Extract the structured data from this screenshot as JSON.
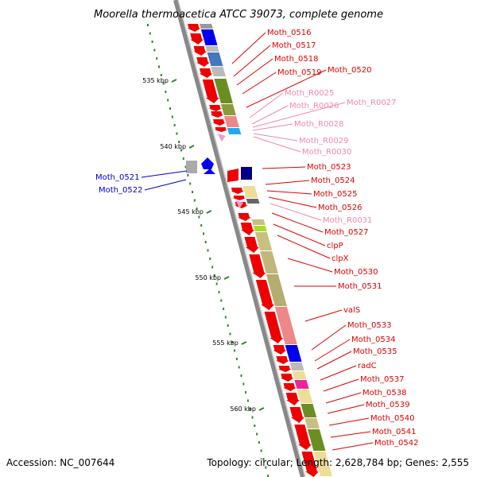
{
  "title": "Moorella thermoacetica ATCC 39073, complete genome",
  "footer": {
    "accession": "Accession: NC_007644",
    "topology": "Topology: circular; Length: 2,628,784 bp; Genes: 2,555"
  },
  "colors": {
    "forward_label": "#dd0000",
    "rna_label": "#ee88aa",
    "reverse_label": "#0000cc",
    "tick": "#2a8a2a",
    "backbone": "#888888"
  },
  "ticks": [
    {
      "label": "535 kbp"
    },
    {
      "label": "540 kbp"
    },
    {
      "label": "545 kbp"
    },
    {
      "label": "550 kbp"
    },
    {
      "label": "555 kbp"
    },
    {
      "label": "560 kbp"
    }
  ],
  "labels": [
    {
      "text": "Moth_0516",
      "kind": "forward"
    },
    {
      "text": "Moth_0517",
      "kind": "forward"
    },
    {
      "text": "Moth_0518",
      "kind": "forward"
    },
    {
      "text": "Moth_0519",
      "kind": "forward"
    },
    {
      "text": "Moth_0520",
      "kind": "forward"
    },
    {
      "text": "Moth_R0025",
      "kind": "rna"
    },
    {
      "text": "Moth_R0026",
      "kind": "rna"
    },
    {
      "text": "Moth_R0027",
      "kind": "rna"
    },
    {
      "text": "Moth_R0028",
      "kind": "rna"
    },
    {
      "text": "Moth_R0029",
      "kind": "rna"
    },
    {
      "text": "Moth_R0030",
      "kind": "rna"
    },
    {
      "text": "Moth_0523",
      "kind": "forward"
    },
    {
      "text": "Moth_0524",
      "kind": "forward"
    },
    {
      "text": "Moth_0525",
      "kind": "forward"
    },
    {
      "text": "Moth_0526",
      "kind": "forward"
    },
    {
      "text": "Moth_R0031",
      "kind": "rna"
    },
    {
      "text": "Moth_0527",
      "kind": "forward"
    },
    {
      "text": "clpP",
      "kind": "forward"
    },
    {
      "text": "clpX",
      "kind": "forward"
    },
    {
      "text": "Moth_0530",
      "kind": "forward"
    },
    {
      "text": "Moth_0531",
      "kind": "forward"
    },
    {
      "text": "valS",
      "kind": "forward"
    },
    {
      "text": "Moth_0533",
      "kind": "forward"
    },
    {
      "text": "Moth_0534",
      "kind": "forward"
    },
    {
      "text": "Moth_0535",
      "kind": "forward"
    },
    {
      "text": "radC",
      "kind": "forward"
    },
    {
      "text": "Moth_0537",
      "kind": "forward"
    },
    {
      "text": "Moth_0538",
      "kind": "forward"
    },
    {
      "text": "Moth_0539",
      "kind": "forward"
    },
    {
      "text": "Moth_0540",
      "kind": "forward"
    },
    {
      "text": "Moth_0541",
      "kind": "forward"
    },
    {
      "text": "Moth_0542",
      "kind": "forward"
    },
    {
      "text": "Moth_0521",
      "kind": "reverse"
    },
    {
      "text": "Moth_0522",
      "kind": "reverse"
    }
  ]
}
